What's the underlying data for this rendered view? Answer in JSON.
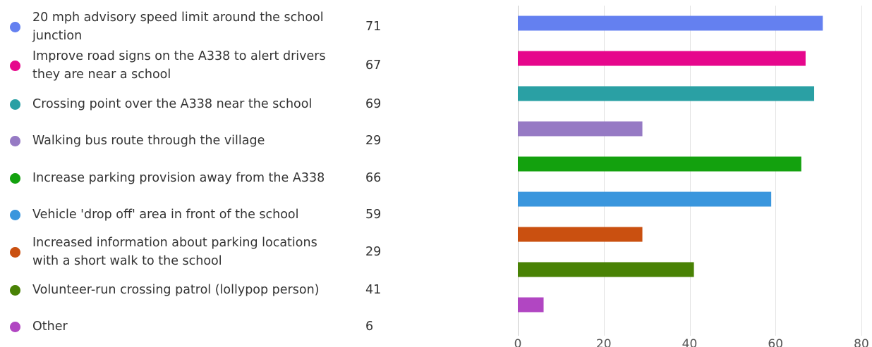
{
  "chart_data": {
    "type": "bar",
    "orientation": "horizontal",
    "categories": [
      "20 mph advisory speed limit around the school junction",
      "Improve road signs on the A338 to alert drivers they are near a school",
      "Crossing point over the A338 near the school",
      "Walking bus route through the village",
      "Increase parking provision away from the A338",
      "Vehicle 'drop off' area in front of the school",
      "Increased information about parking locations with a short walk to the school",
      "Volunteer-run crossing patrol (lollypop person)",
      "Other"
    ],
    "values": [
      71,
      67,
      69,
      29,
      66,
      59,
      29,
      41,
      6
    ],
    "colors": [
      "#6480f0",
      "#e6078c",
      "#2aa0a4",
      "#967ac4",
      "#13a10e",
      "#3a96dd",
      "#ca5010",
      "#498205",
      "#b146c2"
    ],
    "xlim": [
      0,
      80
    ],
    "xticks": [
      0,
      20,
      40,
      60,
      80
    ],
    "grid": true,
    "legend_placement": "left"
  }
}
